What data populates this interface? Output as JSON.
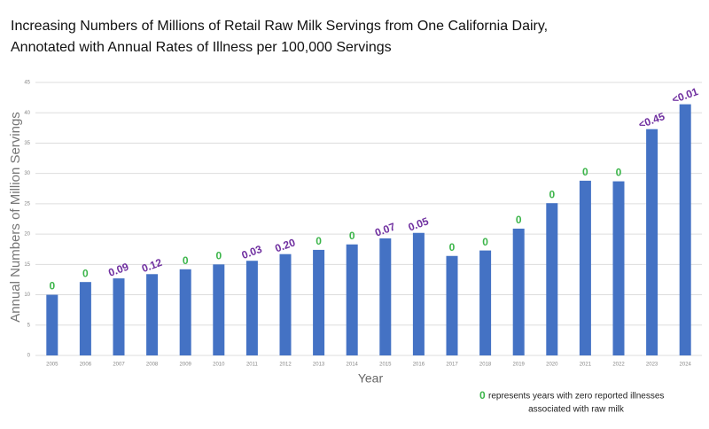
{
  "chart_data": {
    "type": "bar",
    "title_lines": [
      "Increasing Numbers of Millions of Retail Raw Milk Servings from One California Dairy,",
      "Annotated with Annual Rates of Illness per 100,000 Servings"
    ],
    "xlabel": "Year",
    "ylabel": "Annual Numbers of Million Servings",
    "categories": [
      "2005",
      "2006",
      "2007",
      "2008",
      "2009",
      "2010",
      "2011",
      "2012",
      "2013",
      "2014",
      "2015",
      "2016",
      "2017",
      "2018",
      "2019",
      "2020",
      "2021",
      "2022",
      "2023",
      "2024"
    ],
    "values": [
      10,
      12.1,
      12.7,
      13.4,
      14.2,
      15,
      15.6,
      16.7,
      17.4,
      18.3,
      19.3,
      20.2,
      16.4,
      17.3,
      20.9,
      25.1,
      28.8,
      28.7,
      37.3,
      41.4
    ],
    "color": "#4472c4",
    "annotations": [
      "0",
      "0",
      "0.09",
      "0.12",
      "0",
      "0",
      "0.03",
      "0.20",
      "0",
      "0",
      "0.07",
      "0.05",
      "0",
      "0",
      "0",
      "0",
      "0",
      "0",
      "<0.45",
      "<0.01"
    ],
    "zero_color": "#3cb54a",
    "rate_color": "#7030a0",
    "ylim": [
      0,
      45
    ],
    "yticks": [
      0,
      5,
      10,
      15,
      20,
      25,
      30,
      35,
      40,
      45
    ],
    "grid": true,
    "note": {
      "marker": "0",
      "lines": [
        "represents years with zero reported illnesses",
        "associated with raw milk"
      ]
    }
  }
}
